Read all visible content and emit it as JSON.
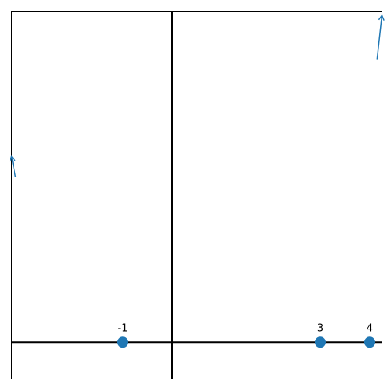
{
  "colors": {
    "accent": "#1f77b4",
    "axes": "#000000",
    "background": "#ffffff"
  },
  "chart_data": {
    "type": "scatter",
    "title": "",
    "xlabel": "",
    "ylabel": "",
    "grid": false,
    "legend": "none",
    "xlim": [
      -3.25,
      4.25
    ],
    "ylim": [
      -0.5,
      4.5
    ],
    "axis_lines": {
      "x": 0,
      "y": 0
    },
    "points": [
      {
        "x": -1,
        "y": 0,
        "label": "-1"
      },
      {
        "x": 3,
        "y": 0,
        "label": "3"
      },
      {
        "x": 4,
        "y": 0,
        "label": "4"
      }
    ],
    "arrows": [
      {
        "from": [
          -3.17,
          2.25
        ],
        "to": [
          -3.25,
          2.53
        ]
      },
      {
        "from": [
          4.15,
          3.85
        ],
        "to": [
          4.25,
          4.45
        ]
      }
    ]
  }
}
